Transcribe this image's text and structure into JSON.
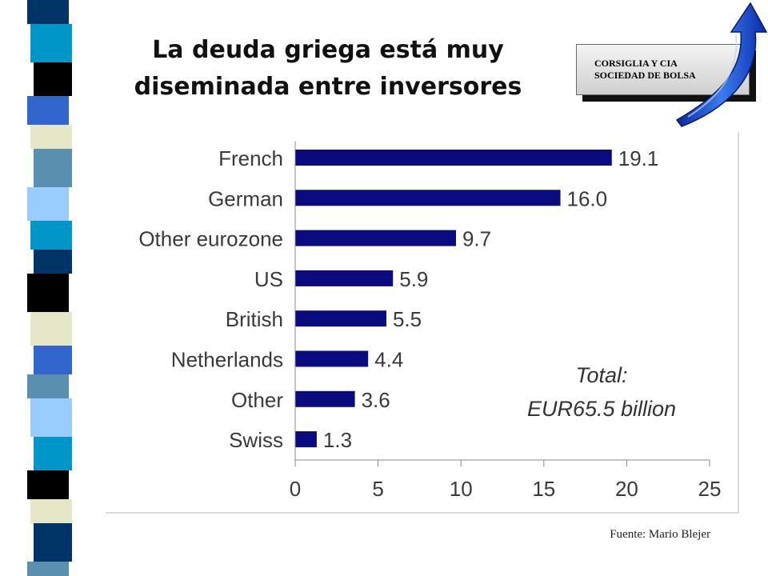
{
  "slide": {
    "title_line_1": "La deuda griega está muy",
    "title_line_2": "diseminada entre inversores",
    "source": "Fuente: Mario Blejer"
  },
  "logo": {
    "line_1": "CORSIGLIA Y CIA",
    "line_2": "SOCIEDAD DE BOLSA",
    "icon": "blue-curved-arrow-icon"
  },
  "theme": {
    "bar_color": "#0b0b80",
    "axis_color": "#888888",
    "strip_colors": [
      "#000000",
      "#0096c8",
      "#5a8fb0",
      "#003366",
      "#3366cc",
      "#99ccff",
      "#e6e6c8"
    ]
  },
  "chart_data": {
    "type": "bar",
    "orientation": "horizontal",
    "categories": [
      "French",
      "German",
      "Other eurozone",
      "US",
      "British",
      "Netherlands",
      "Other",
      "Swiss"
    ],
    "values": [
      19.1,
      16.0,
      9.7,
      5.9,
      5.5,
      4.4,
      3.6,
      1.3
    ],
    "value_labels": [
      "19.1",
      "16.0",
      "9.7",
      "5.9",
      "5.5",
      "4.4",
      "3.6",
      "1.3"
    ],
    "xlim": [
      0,
      25
    ],
    "xticks": [
      0,
      5,
      10,
      15,
      20,
      25
    ],
    "annotation_line_1": "Total:",
    "annotation_line_2": "EUR65.5 billion",
    "grid": false
  }
}
